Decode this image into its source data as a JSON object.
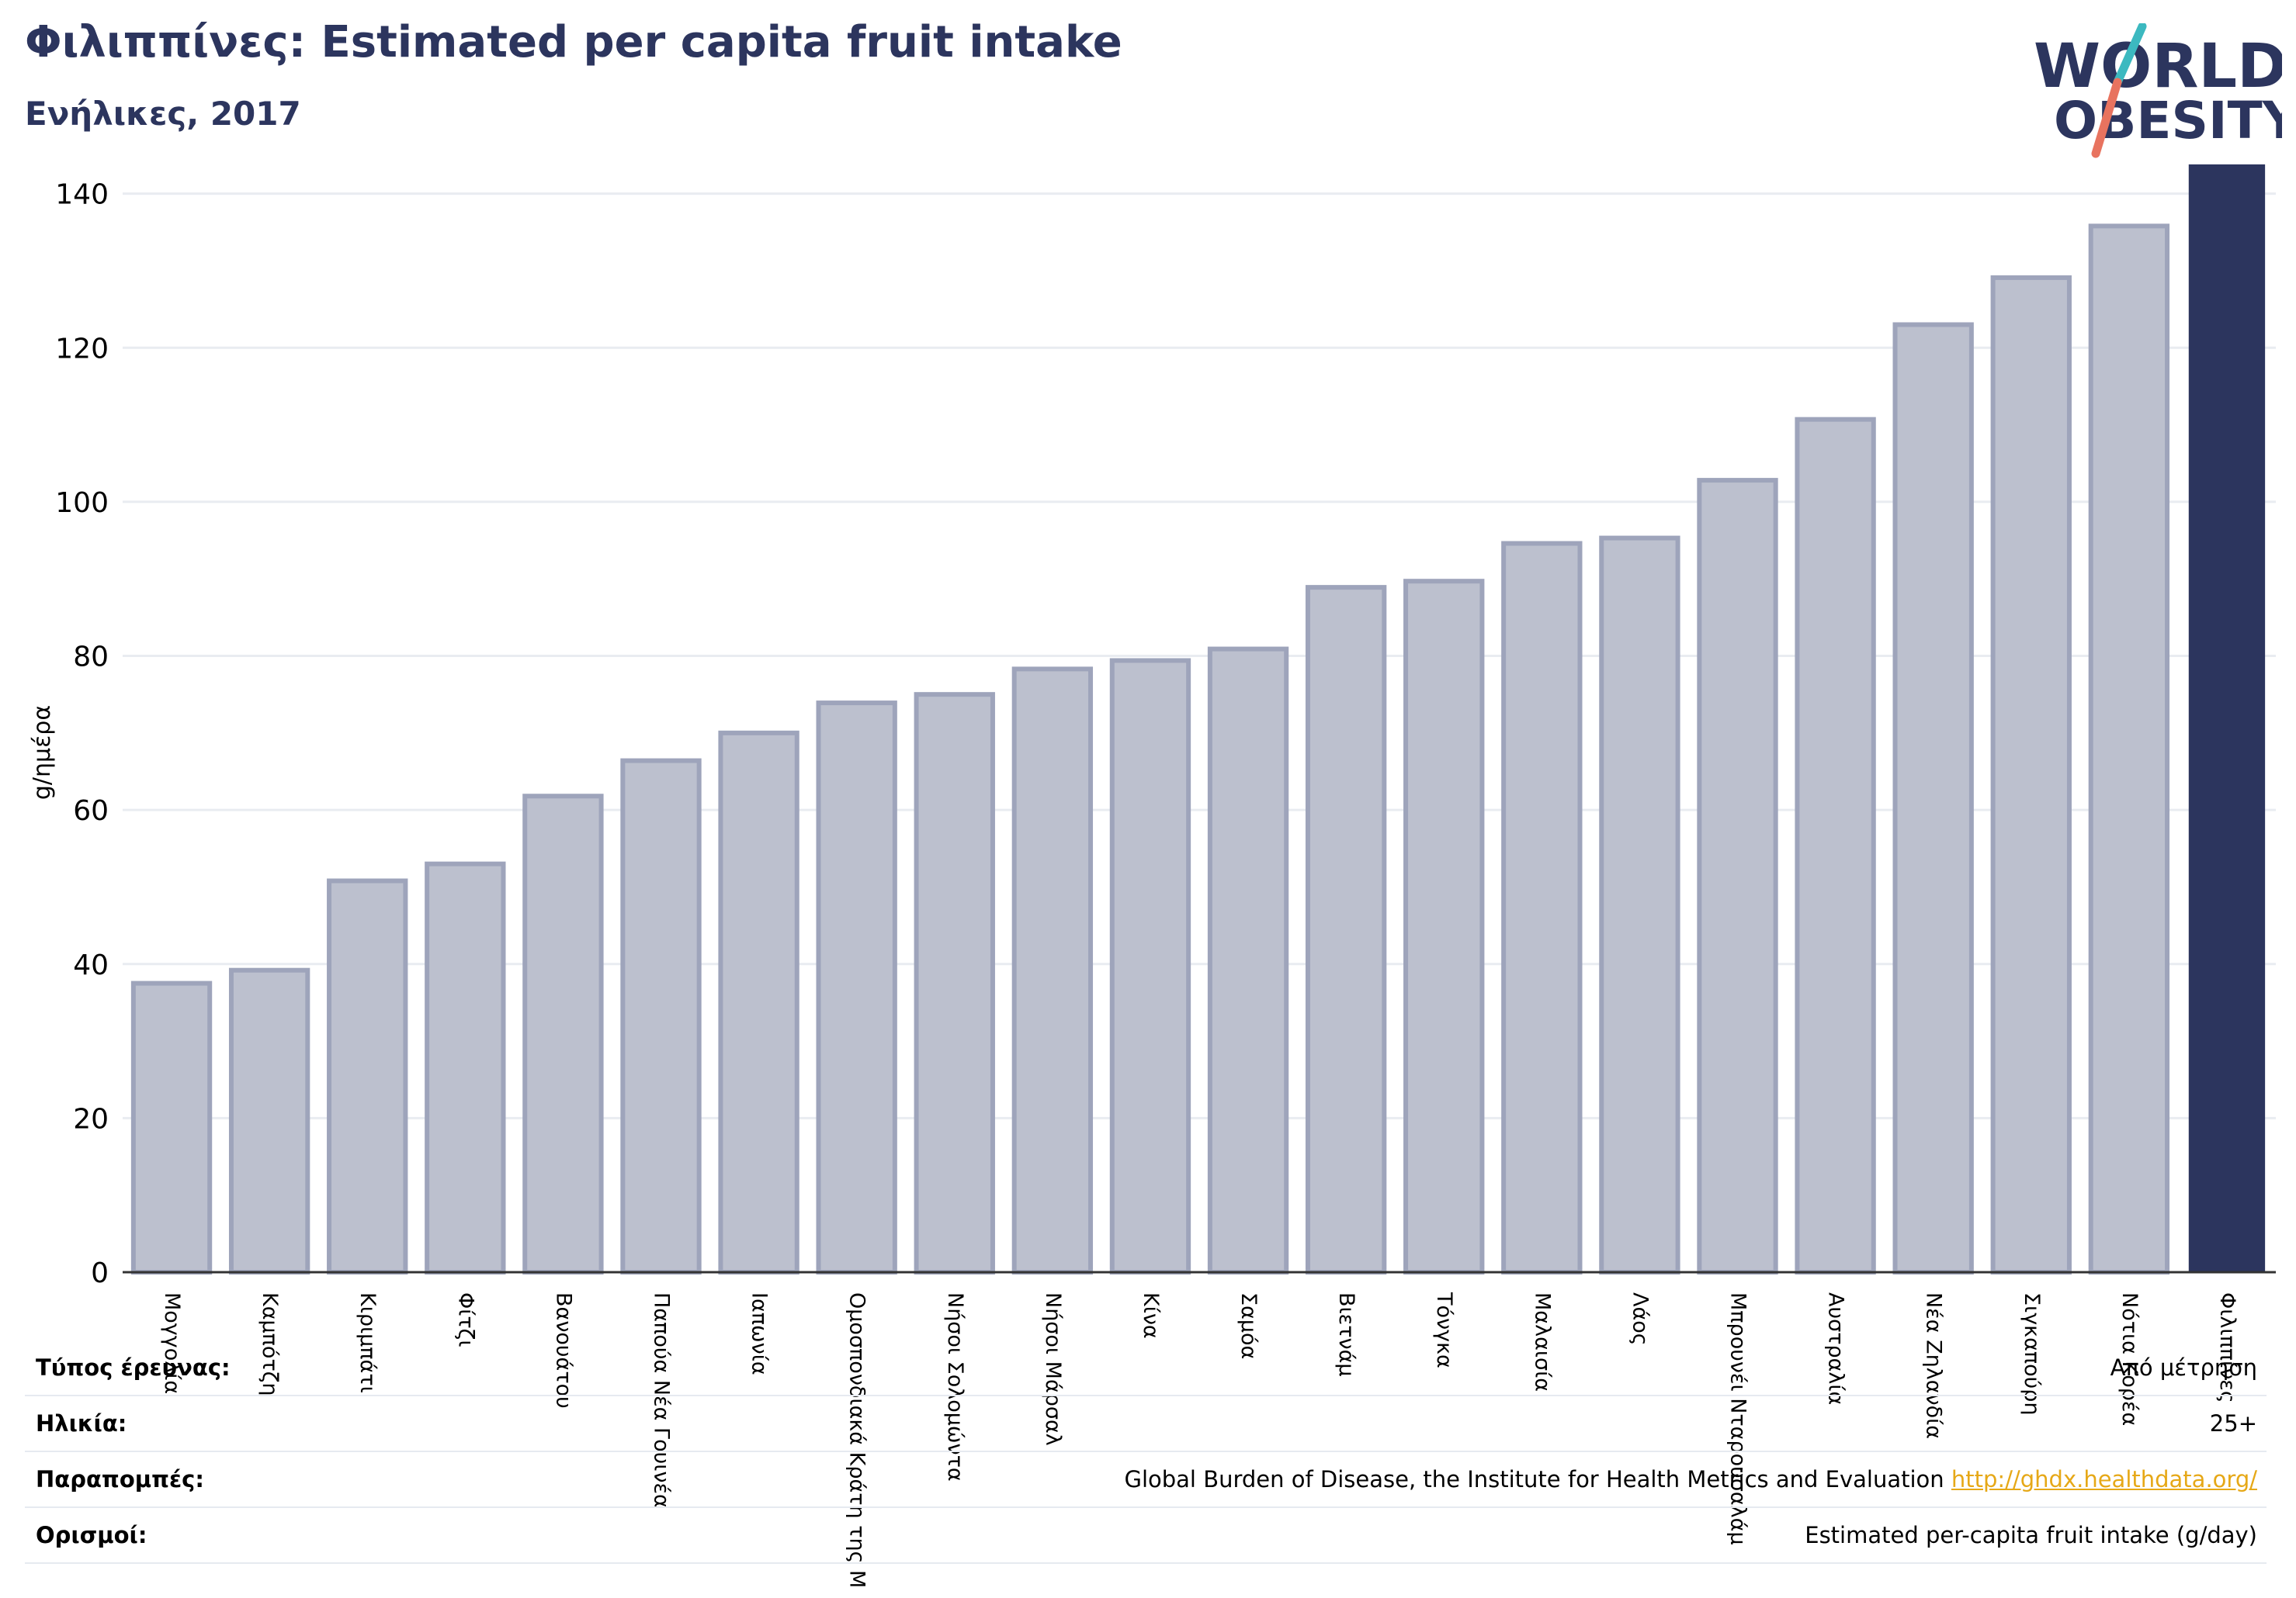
{
  "header": {
    "title": "Φιλιππίνες: Estimated per capita fruit intake",
    "subtitle": "Ενήλικες, 2017"
  },
  "logo": {
    "line1": "WORLD",
    "line2": "OBESITY"
  },
  "colors": {
    "bar_fill": "#bcc0ce",
    "bar_stroke": "#9ea4bb",
    "highlight": "#2c355e",
    "title": "#2c355e",
    "logo_teal": "#3cb9c0",
    "logo_red": "#e8735f",
    "link": "#e6a817"
  },
  "chart_data": {
    "type": "bar",
    "ylabel": "g/ημέρα",
    "ylim": [
      0,
      145
    ],
    "yticks": [
      0,
      20,
      40,
      60,
      80,
      100,
      120,
      140
    ],
    "grid": true,
    "highlight_category": "Φιλιππίνες",
    "categories": [
      "Μογγολία",
      "Καμπότζη",
      "Κιριμπάτι",
      "Φίτζι",
      "Βανουάτου",
      "Παπούα Νέα Γουινέα",
      "Ιαπωνία",
      "Ομοσπονδιακά Κράτη της Μ",
      "Νήσοι Σολομώντα",
      "Νήσοι Μάρσαλ",
      "Κίνα",
      "Σαμόα",
      "Βιετνάμ",
      "Τόνγκα",
      "Μαλαισία",
      "Λάος",
      "Μπρουνέι Νταρουσαλάμ",
      "Αυστραλία",
      "Νέα Ζηλανδία",
      "Σιγκαπούρη",
      "Νότια Κορέα",
      "Φιλιππίνες"
    ],
    "values": [
      37.5,
      39.2,
      50.8,
      53.0,
      61.8,
      66.4,
      70.0,
      73.9,
      75.0,
      78.3,
      79.4,
      80.9,
      88.9,
      89.7,
      94.6,
      95.3,
      102.8,
      110.7,
      123.0,
      129.1,
      135.8,
      143.8
    ]
  },
  "info": {
    "rows": [
      {
        "label": "Τύπος έρευνας:",
        "value": "Από μέτρηση"
      },
      {
        "label": "Ηλικία:",
        "value": "25+"
      },
      {
        "label": "Παραπομπές:",
        "value": "Global Burden of Disease, the Institute for Health Metrics and Evaluation ",
        "link": "http://ghdx.healthdata.org/"
      },
      {
        "label": "Ορισμοί:",
        "value": "Estimated per-capita fruit intake (g/day)"
      }
    ]
  }
}
